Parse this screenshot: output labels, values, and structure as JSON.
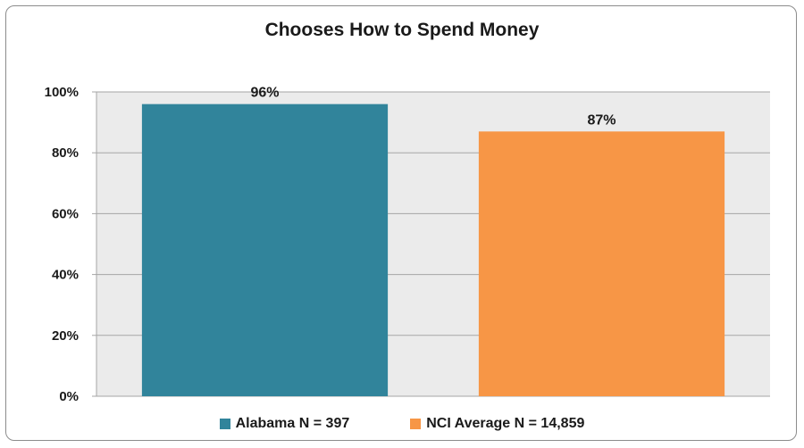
{
  "chart_data": {
    "type": "bar",
    "title": "Chooses How to Spend Money",
    "xlabel": "",
    "ylabel": "",
    "ylim": [
      0,
      100
    ],
    "yticks": [
      "0%",
      "20%",
      "40%",
      "60%",
      "80%",
      "100%"
    ],
    "grid": true,
    "legend_position": "bottom",
    "series": [
      {
        "name": "Alabama N = 397",
        "value": 96,
        "label": "96%",
        "color": "#31849b"
      },
      {
        "name": "NCI Average N = 14,859",
        "value": 87,
        "label": "87%",
        "color": "#f79646"
      }
    ]
  },
  "colors": {
    "plot_background": "#ebebeb",
    "gridline": "#a6a6a6",
    "frame_border": "#8c8c8c"
  }
}
